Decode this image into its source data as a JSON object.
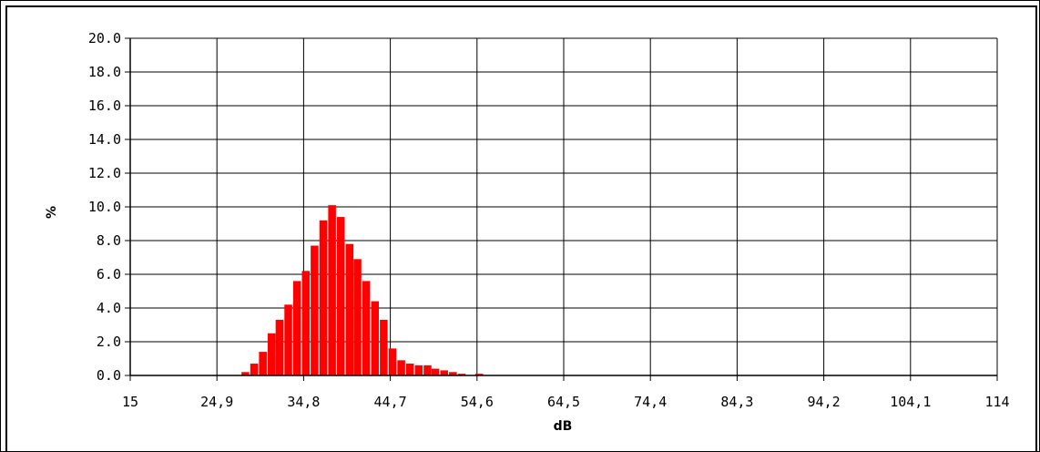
{
  "chart_data": {
    "type": "bar",
    "title": "",
    "xlabel": "dB",
    "ylabel": "%",
    "xlim": [
      15,
      114
    ],
    "ylim": [
      0,
      20
    ],
    "grid": true,
    "legend": "none",
    "bar_color": "#ff0000",
    "bar_width": 0.99,
    "x_ticks": [
      "15",
      "24,9",
      "34,8",
      "44,7",
      "54,6",
      "64,5",
      "74,4",
      "84,3",
      "94,2",
      "104,1",
      "114"
    ],
    "x_tick_values": [
      15,
      24.9,
      34.8,
      44.7,
      54.6,
      64.5,
      74.4,
      84.3,
      94.2,
      104.1,
      114
    ],
    "y_ticks": [
      "0.0",
      "2.0",
      "4.0",
      "6.0",
      "8.0",
      "10.0",
      "12.0",
      "14.0",
      "16.0",
      "18.0",
      "20.0"
    ],
    "y_tick_values": [
      0,
      2,
      4,
      6,
      8,
      10,
      12,
      14,
      16,
      18,
      20
    ],
    "x": [
      28.2,
      29.2,
      30.2,
      31.2,
      32.1,
      33.1,
      34.1,
      35.1,
      36.1,
      37.1,
      38.1,
      39.1,
      40.1,
      41.0,
      42.0,
      43.0,
      44.0,
      45.0,
      46.0,
      47.0,
      48.0,
      49.0,
      49.9,
      50.9,
      51.9,
      52.9,
      53.9,
      54.9
    ],
    "values": [
      0.2,
      0.7,
      1.4,
      2.5,
      3.3,
      4.2,
      5.6,
      6.2,
      7.7,
      9.2,
      10.1,
      9.4,
      7.8,
      6.9,
      5.6,
      4.4,
      3.3,
      1.6,
      0.9,
      0.7,
      0.6,
      0.6,
      0.4,
      0.3,
      0.2,
      0.1,
      0.0,
      0.1
    ]
  }
}
